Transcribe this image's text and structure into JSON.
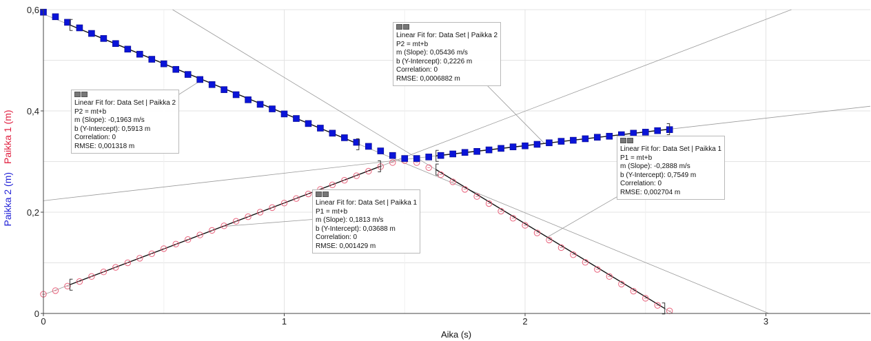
{
  "chart_data": {
    "type": "scatter",
    "xlabel": "Aika (s)",
    "ylabel_series2": "Paikka 2 (m)",
    "ylabel_series1": "Paikka 1 (m)",
    "xlim": [
      0,
      3.45
    ],
    "ylim": [
      0,
      0.6
    ],
    "xticks": [
      "0",
      "1",
      "2",
      "3"
    ],
    "yticks": [
      "0",
      "0,2",
      "0,4",
      "0,6"
    ],
    "grid": true,
    "series": [
      {
        "name": "Paikka 2",
        "color": "#0a14d8",
        "marker": "filled-square",
        "x": [
          0.0,
          0.05,
          0.1,
          0.15,
          0.2,
          0.25,
          0.3,
          0.35,
          0.4,
          0.45,
          0.5,
          0.55,
          0.6,
          0.65,
          0.7,
          0.75,
          0.8,
          0.85,
          0.9,
          0.95,
          1.0,
          1.05,
          1.1,
          1.15,
          1.2,
          1.25,
          1.3,
          1.35,
          1.4,
          1.45,
          1.5,
          1.55,
          1.6,
          1.65,
          1.7,
          1.75,
          1.8,
          1.85,
          1.9,
          1.95,
          2.0,
          2.05,
          2.1,
          2.15,
          2.2,
          2.25,
          2.3,
          2.35,
          2.4,
          2.45,
          2.5,
          2.55,
          2.6
        ],
        "y": [
          0.595,
          0.586,
          0.575,
          0.564,
          0.553,
          0.543,
          0.533,
          0.522,
          0.512,
          0.502,
          0.493,
          0.482,
          0.472,
          0.462,
          0.452,
          0.442,
          0.432,
          0.422,
          0.413,
          0.404,
          0.394,
          0.385,
          0.375,
          0.366,
          0.356,
          0.347,
          0.338,
          0.33,
          0.321,
          0.312,
          0.306,
          0.306,
          0.309,
          0.312,
          0.315,
          0.318,
          0.32,
          0.323,
          0.326,
          0.329,
          0.331,
          0.334,
          0.337,
          0.34,
          0.342,
          0.345,
          0.348,
          0.35,
          0.353,
          0.356,
          0.358,
          0.361,
          0.363
        ]
      },
      {
        "name": "Paikka 1",
        "color": "#e8607a",
        "marker": "open-circle",
        "x": [
          0.0,
          0.05,
          0.1,
          0.15,
          0.2,
          0.25,
          0.3,
          0.35,
          0.4,
          0.45,
          0.5,
          0.55,
          0.6,
          0.65,
          0.7,
          0.75,
          0.8,
          0.85,
          0.9,
          0.95,
          1.0,
          1.05,
          1.1,
          1.15,
          1.2,
          1.25,
          1.3,
          1.35,
          1.4,
          1.45,
          1.5,
          1.55,
          1.6,
          1.65,
          1.7,
          1.75,
          1.8,
          1.85,
          1.9,
          1.95,
          2.0,
          2.05,
          2.1,
          2.15,
          2.2,
          2.25,
          2.3,
          2.35,
          2.4,
          2.45,
          2.5,
          2.55,
          2.6
        ],
        "y": [
          0.038,
          0.045,
          0.054,
          0.063,
          0.073,
          0.082,
          0.091,
          0.1,
          0.109,
          0.118,
          0.128,
          0.137,
          0.146,
          0.155,
          0.164,
          0.173,
          0.182,
          0.191,
          0.2,
          0.209,
          0.218,
          0.227,
          0.236,
          0.245,
          0.254,
          0.263,
          0.272,
          0.281,
          0.29,
          0.298,
          0.302,
          0.298,
          0.288,
          0.274,
          0.26,
          0.245,
          0.231,
          0.217,
          0.202,
          0.188,
          0.174,
          0.159,
          0.145,
          0.13,
          0.116,
          0.101,
          0.087,
          0.073,
          0.058,
          0.044,
          0.03,
          0.016,
          0.005
        ]
      }
    ],
    "fits": [
      {
        "id": "fit-p2-left",
        "series": "Paikka 2",
        "range": [
          0.11,
          1.31
        ],
        "m": -0.1963,
        "b": 0.5913
      },
      {
        "id": "fit-p2-right",
        "series": "Paikka 2",
        "range": [
          1.63,
          2.6
        ],
        "m": 0.05436,
        "b": 0.2226
      },
      {
        "id": "fit-p1-left",
        "series": "Paikka 1",
        "range": [
          0.11,
          1.4
        ],
        "m": 0.1813,
        "b": 0.03688
      },
      {
        "id": "fit-p1-right",
        "series": "Paikka 1",
        "range": [
          1.63,
          2.58
        ],
        "m": -0.2888,
        "b": 0.7549
      }
    ],
    "annotations": [
      {
        "id": "box1",
        "lines": [
          "Linear Fit for: Data Set | Paikka 2",
          "P2 = mt+b",
          "m (Slope): -0,1963 m/s",
          "b (Y-Intercept): 0,5913 m",
          "Correlation: 0",
          "RMSE: 0,001318 m"
        ]
      },
      {
        "id": "box2",
        "lines": [
          "Linear Fit for: Data Set | Paikka 2",
          "P2 = mt+b",
          "m (Slope): 0,05436 m/s",
          "b (Y-Intercept): 0,2226 m",
          "Correlation: 0",
          "RMSE: 0,0006882 m"
        ]
      },
      {
        "id": "box3",
        "lines": [
          "Linear Fit for: Data Set | Paikka 1",
          "P1 = mt+b",
          "m (Slope): 0,1813 m/s",
          "b (Y-Intercept): 0,03688 m",
          "Correlation: 0",
          "RMSE: 0,001429 m"
        ]
      },
      {
        "id": "box4",
        "lines": [
          "Linear Fit for: Data Set | Paikka 1",
          "P1 = mt+b",
          "m (Slope): -0,2888 m/s",
          "b (Y-Intercept): 0,7549 m",
          "Correlation: 0",
          "RMSE: 0,002704 m"
        ]
      }
    ]
  }
}
